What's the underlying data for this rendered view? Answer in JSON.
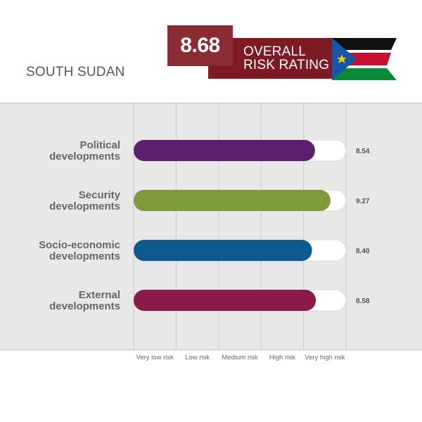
{
  "header": {
    "country": "SOUTH SUDAN",
    "overall_score": "8.68",
    "rating_label_line1": "OVERALL",
    "rating_label_line2": "RISK RATING"
  },
  "colors": {
    "score_box": "#8b2b33",
    "banner": "#7e1a23",
    "panel_bg": "#e8e8e8"
  },
  "chart_data": {
    "type": "bar",
    "orientation": "horizontal",
    "categories": [
      [
        "Political",
        "developments"
      ],
      [
        "Security",
        "developments"
      ],
      [
        "Socio-economic",
        "developments"
      ],
      [
        "External",
        "developments"
      ]
    ],
    "values": [
      8.54,
      9.27,
      8.4,
      8.58
    ],
    "value_labels": [
      "8.54",
      "9.27",
      "8.40",
      "8.58"
    ],
    "bar_colors": [
      "#5c1f6e",
      "#7e9a3a",
      "#0e5a8e",
      "#8a1a4a"
    ],
    "xlim": [
      0,
      10
    ],
    "x_tick_labels": [
      "Very low risk",
      "Low risk",
      "Medium risk",
      "High risk",
      "Very high risk"
    ],
    "grid": true
  }
}
